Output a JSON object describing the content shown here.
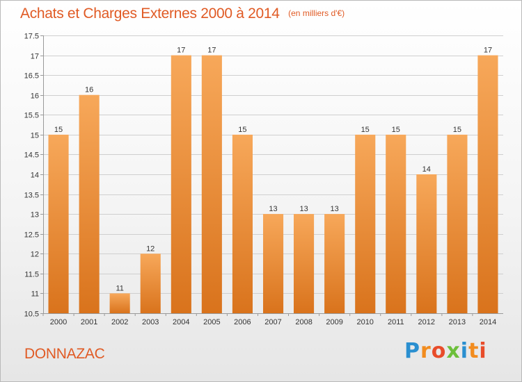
{
  "header": {
    "title": "Achats et Charges Externes 2000 à 2014",
    "subtitle": "(en milliers d'€)"
  },
  "footer": {
    "town": "DONNAZAC",
    "logo_text": "Proxiti",
    "logo_colors": [
      "#2a8fd0",
      "#f28c1e",
      "#e84c2a",
      "#6cbf3a",
      "#2a8fd0",
      "#f28c1e",
      "#e84c2a"
    ]
  },
  "colors": {
    "bar_top": "#f7a85a",
    "bar_bottom": "#d9731c",
    "accent": "#e05a24",
    "grid": "#cfcfcf"
  },
  "chart_data": {
    "type": "bar",
    "title": "Achats et Charges Externes 2000 à 2014",
    "subtitle": "(en milliers d'€)",
    "categories": [
      "2000",
      "2001",
      "2002",
      "2003",
      "2004",
      "2005",
      "2006",
      "2007",
      "2008",
      "2009",
      "2010",
      "2011",
      "2012",
      "2013",
      "2014"
    ],
    "values": [
      15,
      16,
      11,
      12,
      17,
      17,
      15,
      13,
      13,
      13,
      15,
      15,
      14,
      15,
      17
    ],
    "value_labels": [
      "15",
      "16",
      "11",
      "12",
      "17",
      "17",
      "15",
      "13",
      "13",
      "13",
      "15",
      "15",
      "14",
      "15",
      "17"
    ],
    "ylim": [
      10.5,
      17.5
    ],
    "yticks": [
      10.5,
      11,
      11.5,
      12,
      12.5,
      13,
      13.5,
      14,
      14.5,
      15,
      15.5,
      16,
      16.5,
      17,
      17.5
    ],
    "ytick_labels": [
      "10.5",
      "11",
      "11.5",
      "12",
      "12.5",
      "13",
      "13.5",
      "14",
      "14.5",
      "15",
      "15.5",
      "16",
      "16.5",
      "17",
      "17.5"
    ],
    "xlabel": "",
    "ylabel": "",
    "grid": true,
    "legend": "none"
  }
}
